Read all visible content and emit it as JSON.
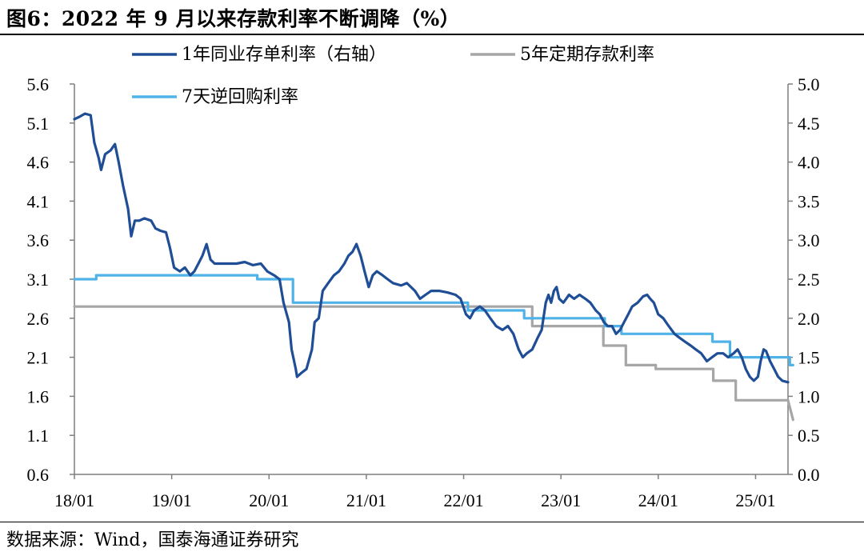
{
  "figure": {
    "title": "图6：2022 年 9 月以来存款利率不断调降（%）",
    "source": "数据来源：Wind，国泰海通证券研究"
  },
  "chart_data": {
    "type": "line",
    "x_ticks": [
      "18/01",
      "19/01",
      "20/01",
      "21/01",
      "22/01",
      "23/01",
      "24/01",
      "25/01"
    ],
    "x_range": [
      "2018-01",
      "2025-05"
    ],
    "left_axis": {
      "ticks": [
        "0.6",
        "1.1",
        "1.6",
        "2.1",
        "2.6",
        "3.1",
        "3.6",
        "4.1",
        "4.6",
        "5.1",
        "5.6"
      ],
      "ylim": [
        0.6,
        5.6
      ]
    },
    "right_axis": {
      "ticks": [
        "0.0",
        "0.5",
        "1.0",
        "1.5",
        "2.0",
        "2.5",
        "3.0",
        "3.5",
        "4.0",
        "4.5",
        "5.0"
      ],
      "ylim": [
        0.0,
        5.0
      ]
    },
    "grid": false,
    "legend_position": "top",
    "series": [
      {
        "name": "1年同业存单利率（右轴）",
        "axis": "right",
        "color": "#1f4e96",
        "points": [
          [
            "2018-01-01",
            4.55
          ],
          [
            "2018-01-20",
            4.58
          ],
          [
            "2018-02-10",
            4.62
          ],
          [
            "2018-03-01",
            4.6
          ],
          [
            "2018-03-15",
            4.25
          ],
          [
            "2018-04-01",
            4.05
          ],
          [
            "2018-04-10",
            3.9
          ],
          [
            "2018-04-25",
            4.1
          ],
          [
            "2018-05-15",
            4.15
          ],
          [
            "2018-06-01",
            4.23
          ],
          [
            "2018-06-15",
            4.0
          ],
          [
            "2018-07-01",
            3.7
          ],
          [
            "2018-07-20",
            3.4
          ],
          [
            "2018-08-01",
            3.05
          ],
          [
            "2018-08-15",
            3.25
          ],
          [
            "2018-09-01",
            3.25
          ],
          [
            "2018-09-20",
            3.28
          ],
          [
            "2018-10-15",
            3.25
          ],
          [
            "2018-11-01",
            3.15
          ],
          [
            "2018-11-20",
            3.12
          ],
          [
            "2018-12-10",
            3.1
          ],
          [
            "2018-12-25",
            2.9
          ],
          [
            "2019-01-10",
            2.65
          ],
          [
            "2019-02-01",
            2.6
          ],
          [
            "2019-02-20",
            2.65
          ],
          [
            "2019-03-10",
            2.55
          ],
          [
            "2019-03-25",
            2.6
          ],
          [
            "2019-04-10",
            2.7
          ],
          [
            "2019-04-25",
            2.8
          ],
          [
            "2019-05-10",
            2.95
          ],
          [
            "2019-05-25",
            2.75
          ],
          [
            "2019-06-10",
            2.7
          ],
          [
            "2019-07-01",
            2.7
          ],
          [
            "2019-08-01",
            2.7
          ],
          [
            "2019-09-01",
            2.7
          ],
          [
            "2019-10-01",
            2.72
          ],
          [
            "2019-11-01",
            2.68
          ],
          [
            "2019-12-01",
            2.7
          ],
          [
            "2019-12-25",
            2.6
          ],
          [
            "2020-01-20",
            2.55
          ],
          [
            "2020-02-10",
            2.5
          ],
          [
            "2020-02-25",
            2.2
          ],
          [
            "2020-03-15",
            1.95
          ],
          [
            "2020-03-25",
            1.6
          ],
          [
            "2020-04-10",
            1.35
          ],
          [
            "2020-04-15",
            1.25
          ],
          [
            "2020-05-01",
            1.3
          ],
          [
            "2020-05-20",
            1.35
          ],
          [
            "2020-06-10",
            1.6
          ],
          [
            "2020-06-20",
            1.95
          ],
          [
            "2020-07-05",
            2.0
          ],
          [
            "2020-07-20",
            2.35
          ],
          [
            "2020-08-10",
            2.45
          ],
          [
            "2020-09-01",
            2.55
          ],
          [
            "2020-09-20",
            2.6
          ],
          [
            "2020-10-10",
            2.7
          ],
          [
            "2020-10-25",
            2.8
          ],
          [
            "2020-11-10",
            2.85
          ],
          [
            "2020-11-25",
            2.95
          ],
          [
            "2020-12-10",
            2.8
          ],
          [
            "2020-12-25",
            2.6
          ],
          [
            "2021-01-10",
            2.4
          ],
          [
            "2021-01-25",
            2.55
          ],
          [
            "2021-02-10",
            2.6
          ],
          [
            "2021-03-01",
            2.55
          ],
          [
            "2021-03-20",
            2.5
          ],
          [
            "2021-04-10",
            2.45
          ],
          [
            "2021-05-10",
            2.42
          ],
          [
            "2021-06-01",
            2.45
          ],
          [
            "2021-07-01",
            2.35
          ],
          [
            "2021-07-20",
            2.25
          ],
          [
            "2021-08-10",
            2.3
          ],
          [
            "2021-09-01",
            2.35
          ],
          [
            "2021-10-01",
            2.35
          ],
          [
            "2021-11-01",
            2.33
          ],
          [
            "2021-12-01",
            2.3
          ],
          [
            "2021-12-20",
            2.25
          ],
          [
            "2022-01-10",
            2.05
          ],
          [
            "2022-01-25",
            2.0
          ],
          [
            "2022-02-10",
            2.1
          ],
          [
            "2022-03-01",
            2.15
          ],
          [
            "2022-03-20",
            2.1
          ],
          [
            "2022-04-10",
            2.0
          ],
          [
            "2022-05-01",
            1.9
          ],
          [
            "2022-05-25",
            1.85
          ],
          [
            "2022-06-15",
            1.9
          ],
          [
            "2022-07-05",
            1.8
          ],
          [
            "2022-07-25",
            1.6
          ],
          [
            "2022-08-10",
            1.5
          ],
          [
            "2022-08-25",
            1.55
          ],
          [
            "2022-09-15",
            1.6
          ],
          [
            "2022-10-05",
            1.75
          ],
          [
            "2022-10-20",
            1.85
          ],
          [
            "2022-11-05",
            2.2
          ],
          [
            "2022-11-15",
            2.3
          ],
          [
            "2022-11-25",
            2.2
          ],
          [
            "2022-12-05",
            2.35
          ],
          [
            "2022-12-15",
            2.4
          ],
          [
            "2022-12-25",
            2.25
          ],
          [
            "2023-01-10",
            2.2
          ],
          [
            "2023-02-01",
            2.3
          ],
          [
            "2023-02-20",
            2.25
          ],
          [
            "2023-03-10",
            2.3
          ],
          [
            "2023-04-01",
            2.25
          ],
          [
            "2023-04-20",
            2.2
          ],
          [
            "2023-05-10",
            2.1
          ],
          [
            "2023-05-25",
            2.05
          ],
          [
            "2023-06-10",
            1.95
          ],
          [
            "2023-06-25",
            1.9
          ],
          [
            "2023-07-10",
            1.9
          ],
          [
            "2023-07-25",
            1.8
          ],
          [
            "2023-08-10",
            1.85
          ],
          [
            "2023-08-25",
            1.95
          ],
          [
            "2023-09-10",
            2.05
          ],
          [
            "2023-09-25",
            2.15
          ],
          [
            "2023-10-15",
            2.2
          ],
          [
            "2023-11-05",
            2.28
          ],
          [
            "2023-11-20",
            2.3
          ],
          [
            "2023-12-01",
            2.25
          ],
          [
            "2023-12-15",
            2.2
          ],
          [
            "2024-01-01",
            2.05
          ],
          [
            "2024-01-20",
            2.0
          ],
          [
            "2024-02-10",
            1.9
          ],
          [
            "2024-03-01",
            1.8
          ],
          [
            "2024-03-20",
            1.75
          ],
          [
            "2024-04-10",
            1.7
          ],
          [
            "2024-05-01",
            1.65
          ],
          [
            "2024-05-20",
            1.6
          ],
          [
            "2024-06-10",
            1.55
          ],
          [
            "2024-07-01",
            1.45
          ],
          [
            "2024-07-20",
            1.5
          ],
          [
            "2024-08-10",
            1.55
          ],
          [
            "2024-09-01",
            1.55
          ],
          [
            "2024-09-20",
            1.5
          ],
          [
            "2024-10-10",
            1.55
          ],
          [
            "2024-10-25",
            1.6
          ],
          [
            "2024-11-10",
            1.5
          ],
          [
            "2024-11-25",
            1.35
          ],
          [
            "2024-12-10",
            1.25
          ],
          [
            "2024-12-25",
            1.2
          ],
          [
            "2025-01-10",
            1.25
          ],
          [
            "2025-01-20",
            1.45
          ],
          [
            "2025-02-01",
            1.6
          ],
          [
            "2025-02-10",
            1.58
          ],
          [
            "2025-02-25",
            1.45
          ],
          [
            "2025-03-10",
            1.35
          ],
          [
            "2025-03-25",
            1.25
          ],
          [
            "2025-04-10",
            1.2
          ],
          [
            "2025-05-01",
            1.18
          ]
        ]
      },
      {
        "name": "5年定期存款利率",
        "axis": "left",
        "color": "#a6a6a6",
        "points": [
          [
            "2018-01-01",
            2.75
          ],
          [
            "2022-09-15",
            2.75
          ],
          [
            "2022-09-15",
            2.5
          ],
          [
            "2023-06-08",
            2.5
          ],
          [
            "2023-06-08",
            2.25
          ],
          [
            "2023-09-01",
            2.25
          ],
          [
            "2023-09-01",
            2.0
          ],
          [
            "2023-12-22",
            2.0
          ],
          [
            "2023-12-22",
            1.95
          ],
          [
            "2024-07-25",
            1.95
          ],
          [
            "2024-07-25",
            1.8
          ],
          [
            "2024-10-18",
            1.8
          ],
          [
            "2024-10-18",
            1.55
          ],
          [
            "2025-05-01",
            1.55
          ],
          [
            "2025-05-20",
            1.3
          ]
        ]
      },
      {
        "name": "7天逆回购利率",
        "axis": "right",
        "color": "#4fb3e8",
        "points": [
          [
            "2018-01-01",
            2.5
          ],
          [
            "2018-03-22",
            2.5
          ],
          [
            "2018-03-22",
            2.55
          ],
          [
            "2019-11-18",
            2.55
          ],
          [
            "2019-11-18",
            2.5
          ],
          [
            "2020-03-30",
            2.5
          ],
          [
            "2020-03-30",
            2.2
          ],
          [
            "2022-01-17",
            2.2
          ],
          [
            "2022-01-17",
            2.1
          ],
          [
            "2022-08-15",
            2.1
          ],
          [
            "2022-08-15",
            2.0
          ],
          [
            "2023-06-13",
            2.0
          ],
          [
            "2023-06-13",
            1.9
          ],
          [
            "2023-08-15",
            1.9
          ],
          [
            "2023-08-15",
            1.8
          ],
          [
            "2024-07-22",
            1.8
          ],
          [
            "2024-07-22",
            1.7
          ],
          [
            "2024-09-27",
            1.7
          ],
          [
            "2024-09-27",
            1.5
          ],
          [
            "2025-05-08",
            1.5
          ],
          [
            "2025-05-08",
            1.4
          ],
          [
            "2025-05-20",
            1.4
          ]
        ]
      }
    ]
  }
}
